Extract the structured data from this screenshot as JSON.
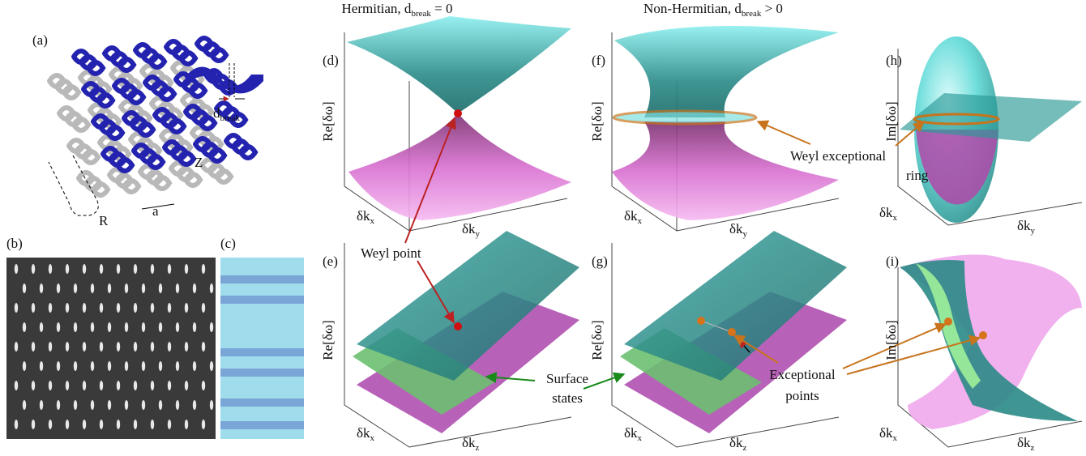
{
  "headers": [
    {
      "text": "Hermitian, d",
      "sub": "break",
      "suffix": " = 0"
    },
    {
      "text": "Non-Hermitian, d",
      "sub": "break",
      "suffix": " > 0"
    }
  ],
  "panel_labels": [
    "(a)",
    "(b)",
    "(c)",
    "(d)",
    "(e)",
    "(f)",
    "(g)",
    "(h)",
    "(i)"
  ],
  "panel_a": {
    "d": "d",
    "d_sub": "break",
    "Z": "Z",
    "R": "R",
    "a": "a"
  },
  "axes": {
    "d": {
      "z": "Re[δω]",
      "x": "δk",
      "x_sub": "x",
      "y": "δk",
      "y_sub": "y"
    },
    "e": {
      "z": "Re[δω]",
      "x": "δk",
      "x_sub": "x",
      "y": "δk",
      "y_sub": "z"
    },
    "f": {
      "z": "Re[δω]",
      "x": "δk",
      "x_sub": "x",
      "y": "δk",
      "y_sub": "y"
    },
    "g": {
      "z": "Re[δω]",
      "x": "δk",
      "x_sub": "x",
      "y": "δk",
      "y_sub": "z"
    },
    "h": {
      "z": "Im[δω]",
      "x": "δk",
      "x_sub": "x",
      "y": "δk",
      "y_sub": "y"
    },
    "i": {
      "z": "Im[δω]",
      "x": "δk",
      "x_sub": "x",
      "y": "δk",
      "y_sub": "z"
    }
  },
  "annotations": {
    "weyl_point": "Weyl point",
    "weyl_ring": [
      "Weyl exceptional",
      "ring"
    ],
    "surface_states": [
      "Surface",
      "states"
    ],
    "exceptional_points": [
      "Exceptional",
      "points"
    ]
  }
}
